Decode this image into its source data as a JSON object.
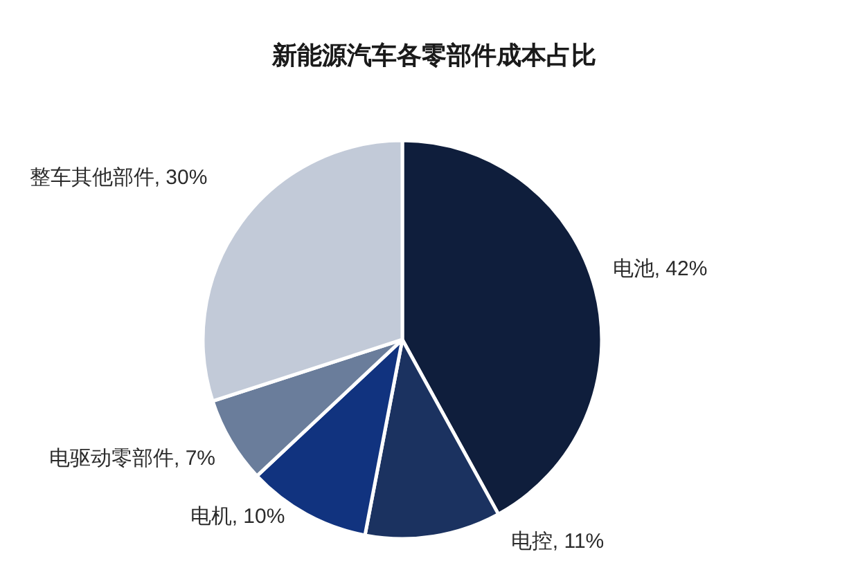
{
  "chart_data": {
    "type": "pie",
    "title": "新能源汽车各零部件成本占比",
    "categories": [
      "电池",
      "电控",
      "电机",
      "电驱动零部件",
      "整车其他部件"
    ],
    "values": [
      42,
      11,
      10,
      7,
      30
    ],
    "colors": [
      "#0f1e3c",
      "#1b3260",
      "#11337f",
      "#6a7d9b",
      "#c2cad8"
    ],
    "value_labels": [
      "42%",
      "11%",
      "10%",
      "7%",
      "30%"
    ]
  }
}
